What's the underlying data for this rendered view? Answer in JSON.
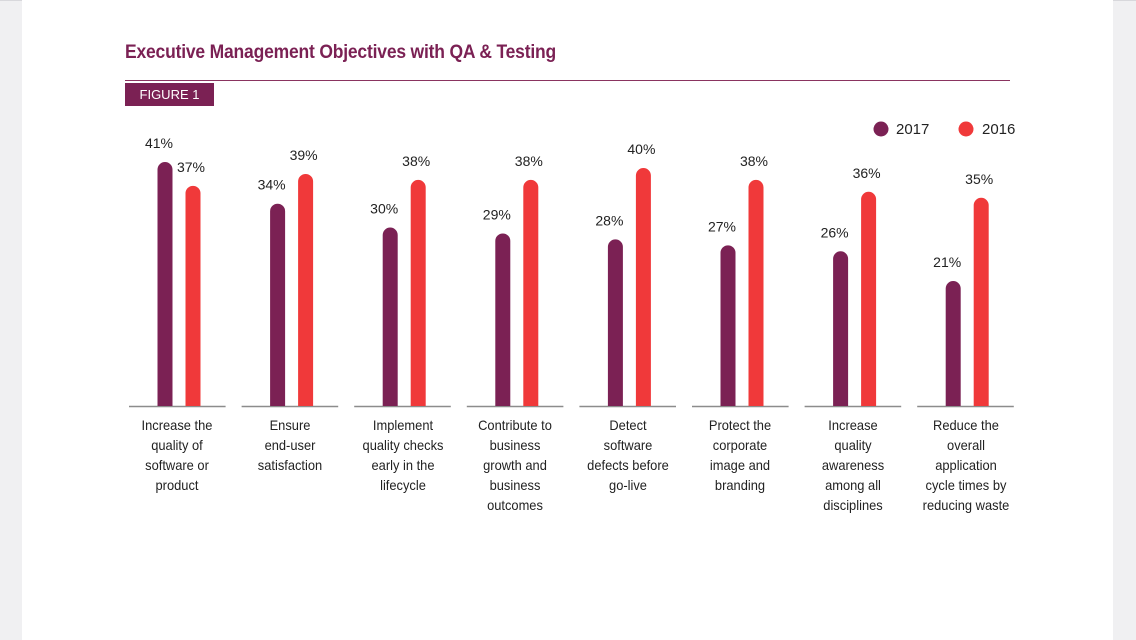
{
  "header": {
    "title": "Executive Management Objectives with QA & Testing",
    "figure_label": "FIGURE 1"
  },
  "colors": {
    "accent": "#7b2154",
    "series_2017": "#7b2154",
    "series_2016": "#f0393a",
    "axis": "#8c8c8c"
  },
  "chart_data": {
    "type": "bar",
    "title": "Executive Management Objectives with QA & Testing",
    "xlabel": "",
    "ylabel": "",
    "ylim": [
      0,
      42
    ],
    "grid": false,
    "legend_position": "top-right",
    "categories": [
      "Increase the quality of software or product",
      "Ensure end-user satisfaction",
      "Implement quality checks early in the lifecycle",
      "Contribute to business growth and business outcomes",
      "Detect software defects before go-live",
      "Protect the corporate image and branding",
      "Increase quality awareness among all disciplines",
      "Reduce the overall application cycle times by reducing waste"
    ],
    "category_lines": [
      [
        "Increase the",
        "quality of",
        "software or",
        "product"
      ],
      [
        "Ensure",
        "end-user",
        "satisfaction"
      ],
      [
        "Implement",
        "quality checks",
        "early in the",
        "lifecycle"
      ],
      [
        "Contribute to",
        "business",
        "growth and",
        "business",
        "outcomes"
      ],
      [
        "Detect",
        "software",
        "defects before",
        "go-live"
      ],
      [
        "Protect the",
        "corporate",
        "image and",
        "branding"
      ],
      [
        "Increase",
        "quality",
        "awareness",
        "among all",
        "disciplines"
      ],
      [
        "Reduce the",
        "overall",
        "application",
        "cycle times by",
        "reducing waste"
      ]
    ],
    "series": [
      {
        "name": "2017",
        "values": [
          41,
          34,
          30,
          29,
          28,
          27,
          26,
          21
        ]
      },
      {
        "name": "2016",
        "values": [
          37,
          39,
          38,
          38,
          40,
          38,
          36,
          35
        ]
      }
    ],
    "value_suffix": "%"
  }
}
